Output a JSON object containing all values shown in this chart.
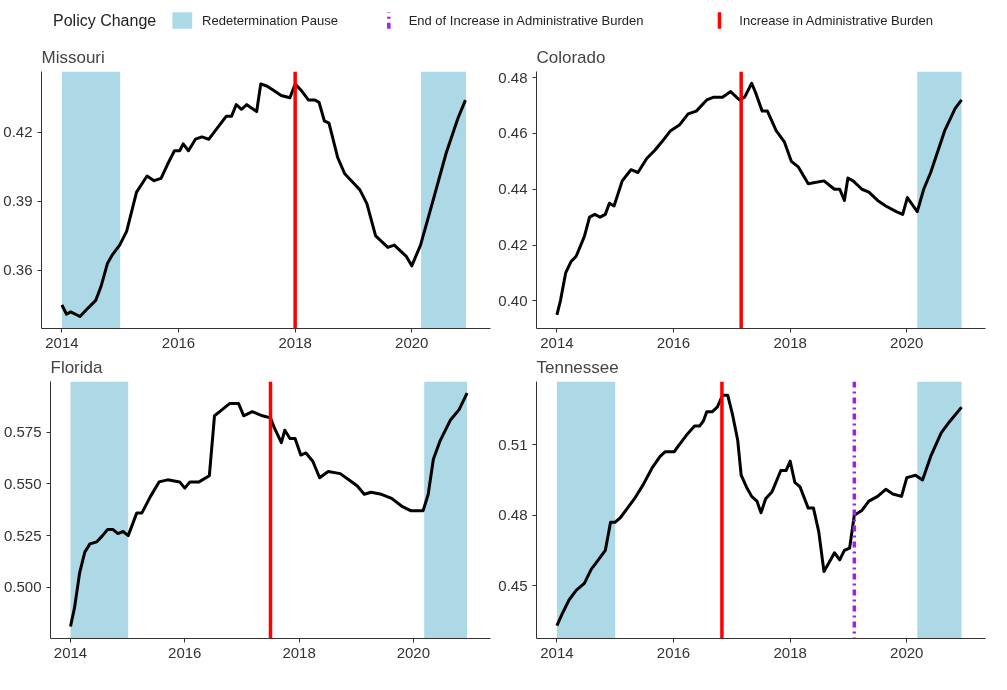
{
  "chart_data": [
    {
      "type": "line",
      "title": "Missouri",
      "legend_title": "Policy Change",
      "legend": "top",
      "grid": false,
      "line_style": "solid",
      "xlim": [
        2013.65,
        2021.35
      ],
      "xticks": [
        2014,
        2016,
        2018,
        2020
      ],
      "ylim": [
        0.3348,
        0.4464
      ],
      "yticks": [
        0.36,
        0.39,
        0.42
      ],
      "series": [
        {
          "color": "#000000",
          "x": [
            2014.0,
            2014.08,
            2014.15,
            2014.31,
            2014.46,
            2014.58,
            2014.67,
            2014.78,
            2014.87,
            2014.99,
            2015.11,
            2015.28,
            2015.46,
            2015.58,
            2015.7,
            2015.81,
            2015.93,
            2016.02,
            2016.08,
            2016.17,
            2016.29,
            2016.4,
            2016.52,
            2016.67,
            2016.82,
            2016.91,
            2016.99,
            2017.08,
            2017.17,
            2017.34,
            2017.41,
            2017.52,
            2017.64,
            2017.76,
            2017.91,
            2018.0,
            2018.11,
            2018.23,
            2018.34,
            2018.41,
            2018.5,
            2018.58,
            2018.73,
            2018.85,
            2019.0,
            2019.11,
            2019.23,
            2019.38,
            2019.59,
            2019.7,
            2019.91,
            2020.0,
            2020.15,
            2020.35,
            2020.59,
            2020.79,
            2020.92
          ],
          "values": [
            0.345,
            0.341,
            0.342,
            0.34,
            0.344,
            0.347,
            0.353,
            0.363,
            0.367,
            0.371,
            0.377,
            0.394,
            0.401,
            0.399,
            0.4,
            0.406,
            0.412,
            0.412,
            0.415,
            0.412,
            0.417,
            0.418,
            0.417,
            0.422,
            0.427,
            0.427,
            0.432,
            0.43,
            0.432,
            0.429,
            0.441,
            0.44,
            0.438,
            0.436,
            0.435,
            0.441,
            0.438,
            0.434,
            0.434,
            0.433,
            0.425,
            0.424,
            0.409,
            0.402,
            0.398,
            0.395,
            0.389,
            0.375,
            0.37,
            0.371,
            0.366,
            0.362,
            0.371,
            0.389,
            0.411,
            0.426,
            0.434
          ]
        }
      ],
      "bands": [
        {
          "axis": "x",
          "from": 2014.0,
          "to": 2015.0,
          "label": "Redetermination Pause",
          "color": "#add8e6"
        },
        {
          "axis": "x",
          "from": 2020.16,
          "to": 2020.93,
          "color": "#add8e6"
        }
      ],
      "ref_lines": [
        {
          "axis": "x",
          "value": 2018.0,
          "color": "#ff0000",
          "line_style": "solid"
        }
      ]
    },
    {
      "type": "line",
      "title": "Colorado",
      "grid": false,
      "line_style": "solid",
      "xlim": [
        2013.65,
        2021.35
      ],
      "xticks": [
        2014,
        2016,
        2018,
        2020
      ],
      "ylim": [
        0.3901,
        0.4822
      ],
      "yticks": [
        {
          "value": 0.4,
          "label": "0.40"
        },
        0.42,
        0.44,
        0.46,
        0.48
      ],
      "series": [
        {
          "color": "#000000",
          "x": [
            2014.0,
            2014.06,
            2014.15,
            2014.24,
            2014.33,
            2014.47,
            2014.56,
            2014.65,
            2014.74,
            2014.83,
            2014.9,
            2014.98,
            2015.12,
            2015.27,
            2015.39,
            2015.54,
            2015.68,
            2015.8,
            2015.95,
            2016.1,
            2016.25,
            2016.39,
            2016.57,
            2016.69,
            2016.84,
            2016.98,
            2017.13,
            2017.22,
            2017.34,
            2017.4,
            2017.52,
            2017.61,
            2017.76,
            2017.9,
            2018.02,
            2018.14,
            2018.31,
            2018.58,
            2018.76,
            2018.85,
            2018.93,
            2018.99,
            2019.08,
            2019.23,
            2019.35,
            2019.5,
            2019.64,
            2019.82,
            2019.93,
            2020.01,
            2020.18,
            2020.29,
            2020.41,
            2020.65,
            2020.83,
            2020.94
          ],
          "values": [
            0.395,
            0.4,
            0.41,
            0.414,
            0.416,
            0.423,
            0.43,
            0.431,
            0.43,
            0.431,
            0.435,
            0.434,
            0.443,
            0.447,
            0.446,
            0.451,
            0.454,
            0.457,
            0.461,
            0.463,
            0.467,
            0.468,
            0.472,
            0.473,
            0.473,
            0.475,
            0.472,
            0.473,
            0.478,
            0.475,
            0.468,
            0.468,
            0.461,
            0.457,
            0.45,
            0.448,
            0.442,
            0.443,
            0.44,
            0.44,
            0.436,
            0.444,
            0.443,
            0.44,
            0.439,
            0.436,
            0.434,
            0.432,
            0.431,
            0.437,
            0.432,
            0.44,
            0.446,
            0.461,
            0.469,
            0.472
          ]
        }
      ],
      "bands": [
        {
          "axis": "x",
          "from": 2020.18,
          "to": 2020.94,
          "color": "#add8e6"
        }
      ],
      "ref_lines": [
        {
          "axis": "x",
          "value": 2017.16,
          "color": "#ff0000",
          "line_style": "solid"
        }
      ]
    },
    {
      "type": "line",
      "title": "Florida",
      "grid": false,
      "line_style": "solid",
      "xlim": [
        2013.65,
        2021.35
      ],
      "xticks": [
        2014,
        2016,
        2018,
        2020
      ],
      "ylim": [
        0.4752,
        0.5996
      ],
      "yticks": [
        {
          "value": 0.5,
          "label": "0.500"
        },
        0.525,
        {
          "value": 0.55,
          "label": "0.550"
        },
        0.575
      ],
      "series": [
        {
          "color": "#000000",
          "x": [
            2014.0,
            2014.07,
            2014.16,
            2014.25,
            2014.34,
            2014.46,
            2014.56,
            2014.65,
            2014.74,
            2014.83,
            2014.92,
            2015.01,
            2015.16,
            2015.25,
            2015.4,
            2015.55,
            2015.7,
            2015.91,
            2016.0,
            2016.09,
            2016.25,
            2016.43,
            2016.52,
            2016.61,
            2016.79,
            2016.94,
            2017.03,
            2017.18,
            2017.36,
            2017.5,
            2017.57,
            2017.69,
            2017.75,
            2017.84,
            2017.93,
            2018.03,
            2018.12,
            2018.24,
            2018.36,
            2018.51,
            2018.72,
            2018.87,
            2019.02,
            2019.14,
            2019.26,
            2019.44,
            2019.62,
            2019.81,
            2019.96,
            2020.17,
            2020.26,
            2020.35,
            2020.47,
            2020.65,
            2020.8,
            2020.94
          ],
          "values": [
            0.481,
            0.49,
            0.507,
            0.517,
            0.521,
            0.522,
            0.525,
            0.528,
            0.528,
            0.526,
            0.527,
            0.525,
            0.536,
            0.536,
            0.544,
            0.551,
            0.552,
            0.551,
            0.548,
            0.551,
            0.551,
            0.554,
            0.583,
            0.585,
            0.589,
            0.589,
            0.583,
            0.585,
            0.583,
            0.582,
            0.577,
            0.57,
            0.576,
            0.572,
            0.572,
            0.564,
            0.565,
            0.561,
            0.553,
            0.556,
            0.555,
            0.552,
            0.549,
            0.545,
            0.546,
            0.545,
            0.543,
            0.539,
            0.537,
            0.537,
            0.545,
            0.562,
            0.571,
            0.581,
            0.586,
            0.594
          ]
        }
      ],
      "bands": [
        {
          "axis": "x",
          "from": 2014.0,
          "to": 2015.01,
          "color": "#add8e6"
        },
        {
          "axis": "x",
          "from": 2020.19,
          "to": 2020.94,
          "color": "#add8e6"
        }
      ],
      "ref_lines": [
        {
          "axis": "x",
          "value": 2017.5,
          "color": "#ff0000",
          "line_style": "solid"
        }
      ]
    },
    {
      "type": "line",
      "title": "Tennessee",
      "legend": "top",
      "grid": false,
      "line_style": "solid",
      "xlim": [
        2013.65,
        2021.35
      ],
      "xticks": [
        2014,
        2016,
        2018,
        2020
      ],
      "ylim": [
        0.4275,
        0.5369
      ],
      "yticks": [
        0.45,
        0.48,
        0.51
      ],
      "series": [
        {
          "color": "#000000",
          "x": [
            2014.0,
            2014.09,
            2014.21,
            2014.33,
            2014.47,
            2014.59,
            2014.71,
            2014.83,
            2014.92,
            2015.0,
            2015.09,
            2015.21,
            2015.33,
            2015.48,
            2015.63,
            2015.77,
            2015.86,
            2016.01,
            2016.1,
            2016.22,
            2016.36,
            2016.45,
            2016.51,
            2016.57,
            2016.66,
            2016.75,
            2016.84,
            2016.93,
            2017.01,
            2017.1,
            2017.16,
            2017.25,
            2017.34,
            2017.43,
            2017.5,
            2017.58,
            2017.69,
            2017.84,
            2017.93,
            2018.0,
            2018.08,
            2018.17,
            2018.31,
            2018.4,
            2018.49,
            2018.58,
            2018.67,
            2018.76,
            2018.85,
            2018.93,
            2019.02,
            2019.1,
            2019.23,
            2019.35,
            2019.5,
            2019.64,
            2019.76,
            2019.91,
            2020.0,
            2020.15,
            2020.27,
            2020.41,
            2020.59,
            2020.74,
            2020.94
          ],
          "values": [
            0.433,
            0.438,
            0.444,
            0.448,
            0.451,
            0.457,
            0.461,
            0.465,
            0.477,
            0.477,
            0.479,
            0.483,
            0.487,
            0.493,
            0.5,
            0.505,
            0.507,
            0.507,
            0.51,
            0.514,
            0.518,
            0.518,
            0.52,
            0.524,
            0.524,
            0.526,
            0.531,
            0.531,
            0.523,
            0.512,
            0.497,
            0.492,
            0.488,
            0.486,
            0.481,
            0.487,
            0.49,
            0.499,
            0.499,
            0.503,
            0.494,
            0.492,
            0.483,
            0.483,
            0.473,
            0.456,
            0.46,
            0.464,
            0.461,
            0.465,
            0.466,
            0.48,
            0.482,
            0.486,
            0.488,
            0.491,
            0.489,
            0.488,
            0.496,
            0.497,
            0.495,
            0.505,
            0.515,
            0.52,
            0.526
          ]
        }
      ],
      "bands": [
        {
          "axis": "x",
          "from": 2014.0,
          "to": 2015.0,
          "color": "#add8e6"
        },
        {
          "axis": "x",
          "from": 2020.18,
          "to": 2020.94,
          "color": "#add8e6"
        }
      ],
      "ref_lines": [
        {
          "axis": "x",
          "value": 2019.1,
          "color": "#a020f0",
          "line_style": "dashdot",
          "label": "End of Increase in Administrative Burden"
        },
        {
          "axis": "x",
          "value": 2016.83,
          "color": "#ff0000",
          "line_style": "solid",
          "label": "Increase in Administrative Burden"
        }
      ]
    }
  ]
}
